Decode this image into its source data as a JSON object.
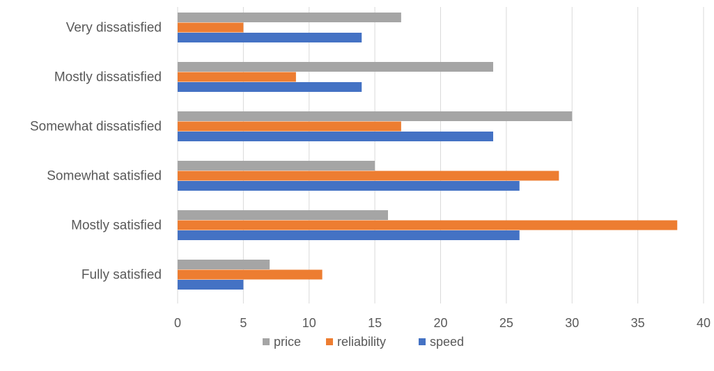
{
  "chart_data": {
    "type": "bar",
    "orientation": "horizontal",
    "categories": [
      "Very dissatisfied",
      "Mostly dissatisfied",
      "Somewhat dissatisfied",
      "Somewhat satisfied",
      "Mostly satisfied",
      "Fully satisfied"
    ],
    "series": [
      {
        "name": "price",
        "color": "#a5a5a5",
        "values": [
          17,
          24,
          30,
          15,
          16,
          7
        ]
      },
      {
        "name": "reliability",
        "color": "#ed7d31",
        "values": [
          5,
          9,
          17,
          29,
          38,
          11
        ]
      },
      {
        "name": "speed",
        "color": "#4472c4",
        "values": [
          14,
          14,
          24,
          26,
          26,
          5
        ]
      }
    ],
    "xlim": [
      0,
      40
    ],
    "xticks": [
      0,
      5,
      10,
      15,
      20,
      25,
      30,
      35,
      40
    ],
    "grid": "vertical",
    "legend": "bottom"
  }
}
